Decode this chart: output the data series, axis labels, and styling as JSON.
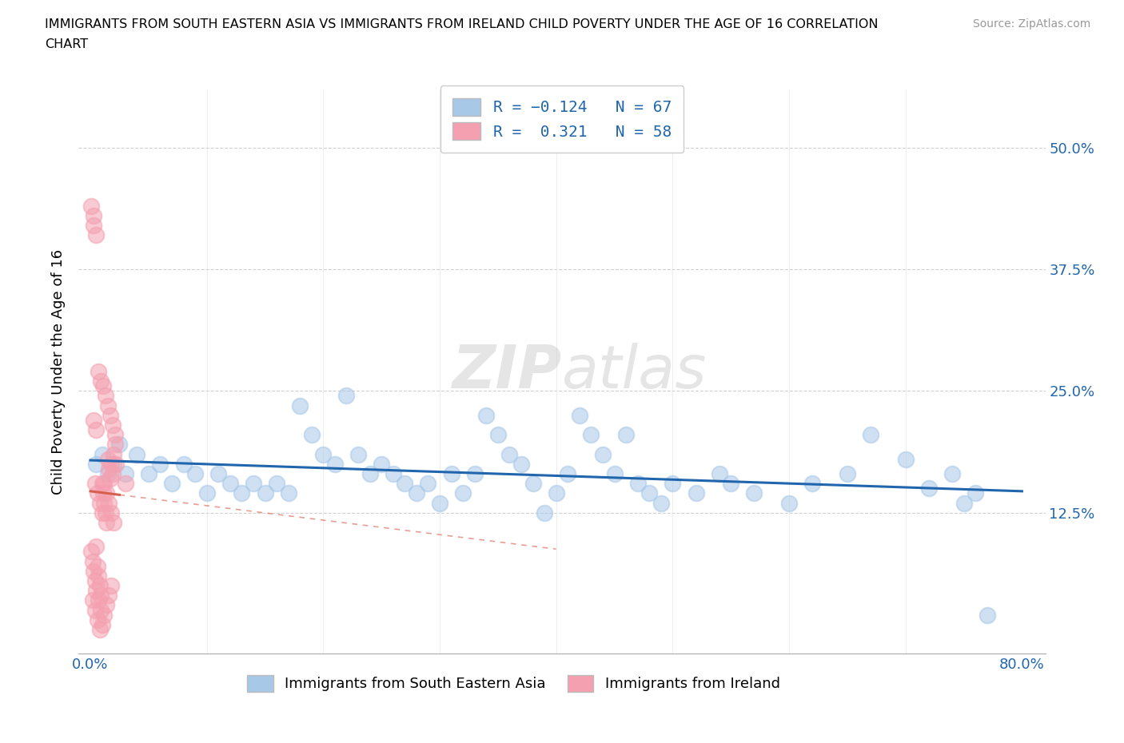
{
  "title_line1": "IMMIGRANTS FROM SOUTH EASTERN ASIA VS IMMIGRANTS FROM IRELAND CHILD POVERTY UNDER THE AGE OF 16 CORRELATION",
  "title_line2": "CHART",
  "source": "Source: ZipAtlas.com",
  "ylabel": "Child Poverty Under the Age of 16",
  "blue_color": "#a8c8e8",
  "pink_color": "#f4a0b0",
  "blue_line_color": "#2166ac",
  "pink_line_color": "#d6604d",
  "grid_color": "#d0d0d0",
  "blue_n": 67,
  "pink_n": 58,
  "blue_r": -0.124,
  "pink_r": 0.321,
  "blue_x": [
    0.005,
    0.01,
    0.015,
    0.02,
    0.025,
    0.03,
    0.04,
    0.05,
    0.06,
    0.07,
    0.08,
    0.09,
    0.1,
    0.11,
    0.12,
    0.13,
    0.14,
    0.15,
    0.16,
    0.17,
    0.18,
    0.19,
    0.2,
    0.21,
    0.22,
    0.23,
    0.24,
    0.25,
    0.26,
    0.27,
    0.28,
    0.29,
    0.3,
    0.31,
    0.32,
    0.33,
    0.34,
    0.35,
    0.36,
    0.37,
    0.38,
    0.39,
    0.4,
    0.41,
    0.42,
    0.43,
    0.44,
    0.45,
    0.46,
    0.47,
    0.48,
    0.49,
    0.5,
    0.52,
    0.54,
    0.55,
    0.57,
    0.6,
    0.62,
    0.65,
    0.67,
    0.7,
    0.72,
    0.74,
    0.75,
    0.76,
    0.77
  ],
  "blue_y": [
    0.175,
    0.185,
    0.165,
    0.175,
    0.195,
    0.165,
    0.185,
    0.165,
    0.175,
    0.155,
    0.175,
    0.165,
    0.145,
    0.165,
    0.155,
    0.145,
    0.155,
    0.145,
    0.155,
    0.145,
    0.235,
    0.205,
    0.185,
    0.175,
    0.245,
    0.185,
    0.165,
    0.175,
    0.165,
    0.155,
    0.145,
    0.155,
    0.135,
    0.165,
    0.145,
    0.165,
    0.225,
    0.205,
    0.185,
    0.175,
    0.155,
    0.125,
    0.145,
    0.165,
    0.225,
    0.205,
    0.185,
    0.165,
    0.205,
    0.155,
    0.145,
    0.135,
    0.155,
    0.145,
    0.165,
    0.155,
    0.145,
    0.135,
    0.155,
    0.165,
    0.205,
    0.18,
    0.15,
    0.165,
    0.135,
    0.145,
    0.02
  ],
  "pink_x": [
    0.001,
    0.002,
    0.003,
    0.004,
    0.005,
    0.006,
    0.007,
    0.008,
    0.009,
    0.01,
    0.011,
    0.012,
    0.013,
    0.014,
    0.015,
    0.016,
    0.017,
    0.018,
    0.019,
    0.02,
    0.021,
    0.022,
    0.003,
    0.005,
    0.007,
    0.009,
    0.011,
    0.013,
    0.015,
    0.017,
    0.019,
    0.021,
    0.004,
    0.006,
    0.008,
    0.01,
    0.012,
    0.014,
    0.016,
    0.018,
    0.02,
    0.002,
    0.004,
    0.006,
    0.008,
    0.01,
    0.012,
    0.014,
    0.016,
    0.018,
    0.001,
    0.003,
    0.005,
    0.007,
    0.009,
    0.003,
    0.005,
    0.03
  ],
  "pink_y": [
    0.085,
    0.075,
    0.065,
    0.055,
    0.09,
    0.07,
    0.06,
    0.05,
    0.04,
    0.155,
    0.145,
    0.135,
    0.125,
    0.115,
    0.18,
    0.17,
    0.16,
    0.175,
    0.165,
    0.185,
    0.195,
    0.175,
    0.22,
    0.21,
    0.27,
    0.26,
    0.255,
    0.245,
    0.235,
    0.225,
    0.215,
    0.205,
    0.155,
    0.145,
    0.135,
    0.125,
    0.155,
    0.145,
    0.135,
    0.125,
    0.115,
    0.035,
    0.025,
    0.015,
    0.005,
    0.01,
    0.02,
    0.03,
    0.04,
    0.05,
    0.44,
    0.43,
    0.045,
    0.035,
    0.025,
    0.42,
    0.41,
    0.155
  ]
}
